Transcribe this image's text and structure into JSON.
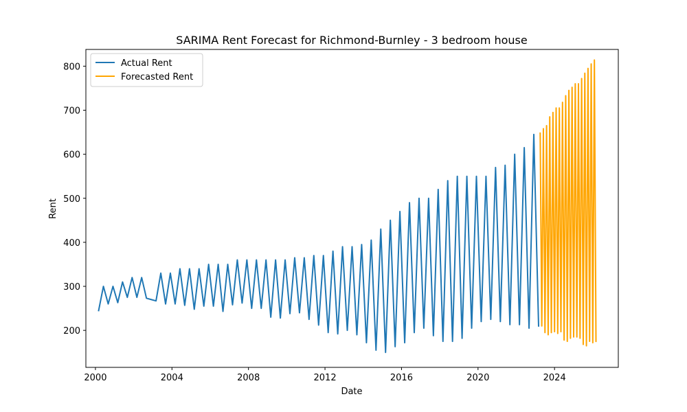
{
  "chart_data": {
    "type": "line",
    "title": "SARIMA Rent Forecast for Richmond-Burnley - 3 bedroom house",
    "xlabel": "Date",
    "ylabel": "Rent",
    "xlim": [
      "1999-07-01",
      "2027-05-01"
    ],
    "ylim": [
      116,
      838
    ],
    "x_ticks": [
      "2000",
      "2004",
      "2008",
      "2012",
      "2016",
      "2020",
      "2024"
    ],
    "y_ticks": [
      200,
      300,
      400,
      500,
      600,
      700,
      800
    ],
    "grid": false,
    "legend": {
      "placement": "upper left"
    },
    "series": [
      {
        "name": "Actual Rent",
        "color": "#1f77b4",
        "x": [
          "2000-03",
          "2000-06",
          "2000-09",
          "2000-12",
          "2001-03",
          "2001-06",
          "2001-09",
          "2001-12",
          "2002-03",
          "2002-06",
          "2002-09",
          "2002-12",
          "2003-03",
          "2003-06",
          "2003-09",
          "2003-12",
          "2004-03",
          "2004-06",
          "2004-09",
          "2004-12",
          "2005-03",
          "2005-06",
          "2005-09",
          "2005-12",
          "2006-03",
          "2006-06",
          "2006-09",
          "2006-12",
          "2007-03",
          "2007-06",
          "2007-09",
          "2007-12",
          "2008-03",
          "2008-06",
          "2008-09",
          "2008-12",
          "2009-03",
          "2009-06",
          "2009-09",
          "2009-12",
          "2010-03",
          "2010-06",
          "2010-09",
          "2010-12",
          "2011-03",
          "2011-06",
          "2011-09",
          "2011-12",
          "2012-03",
          "2012-06",
          "2012-09",
          "2012-12",
          "2013-03",
          "2013-06",
          "2013-09",
          "2013-12",
          "2014-03",
          "2014-06",
          "2014-09",
          "2014-12",
          "2015-03",
          "2015-06",
          "2015-09",
          "2015-12",
          "2016-03",
          "2016-06",
          "2016-09",
          "2016-12",
          "2017-03",
          "2017-06",
          "2017-09",
          "2017-12",
          "2018-03",
          "2018-06",
          "2018-09",
          "2018-12",
          "2019-03",
          "2019-06",
          "2019-09",
          "2019-12",
          "2020-03",
          "2020-06",
          "2020-09",
          "2020-12",
          "2021-03",
          "2021-06",
          "2021-09",
          "2021-12",
          "2022-03",
          "2022-06",
          "2022-09",
          "2022-12",
          "2023-03"
        ],
        "values": [
          245,
          300,
          260,
          300,
          263,
          310,
          275,
          320,
          275,
          320,
          273,
          270,
          267,
          330,
          260,
          330,
          260,
          340,
          257,
          340,
          248,
          340,
          255,
          350,
          255,
          350,
          243,
          350,
          258,
          360,
          262,
          360,
          250,
          360,
          250,
          360,
          230,
          360,
          228,
          360,
          238,
          365,
          240,
          365,
          225,
          370,
          212,
          370,
          195,
          380,
          192,
          390,
          200,
          390,
          190,
          395,
          172,
          405,
          155,
          430,
          150,
          450,
          163,
          470,
          172,
          490,
          195,
          500,
          205,
          500,
          188,
          520,
          175,
          540,
          175,
          550,
          182,
          550,
          205,
          550,
          220,
          550,
          225,
          570,
          220,
          575,
          213,
          600,
          213,
          615,
          205,
          645,
          210
        ]
      },
      {
        "name": "Forecasted Rent",
        "color": "#ffa500",
        "x": [
          "2023-04",
          "2023-05",
          "2023-06",
          "2023-07",
          "2023-08",
          "2023-09",
          "2023-10",
          "2023-11",
          "2023-12",
          "2024-01",
          "2024-02",
          "2024-03",
          "2024-04",
          "2024-05",
          "2024-06",
          "2024-07",
          "2024-08",
          "2024-09",
          "2024-10",
          "2024-11",
          "2024-12",
          "2025-01",
          "2025-02",
          "2025-03",
          "2025-04",
          "2025-05",
          "2025-06",
          "2025-07",
          "2025-08",
          "2025-09",
          "2025-10",
          "2025-11",
          "2025-12",
          "2026-01",
          "2026-02",
          "2026-03"
        ],
        "values": [
          648,
          210,
          658,
          195,
          665,
          190,
          685,
          195,
          695,
          197,
          705,
          193,
          705,
          197,
          718,
          178,
          733,
          175,
          745,
          182,
          752,
          185,
          760,
          185,
          760,
          182,
          772,
          168,
          784,
          165,
          795,
          175,
          805,
          172,
          814,
          175
        ]
      }
    ]
  }
}
